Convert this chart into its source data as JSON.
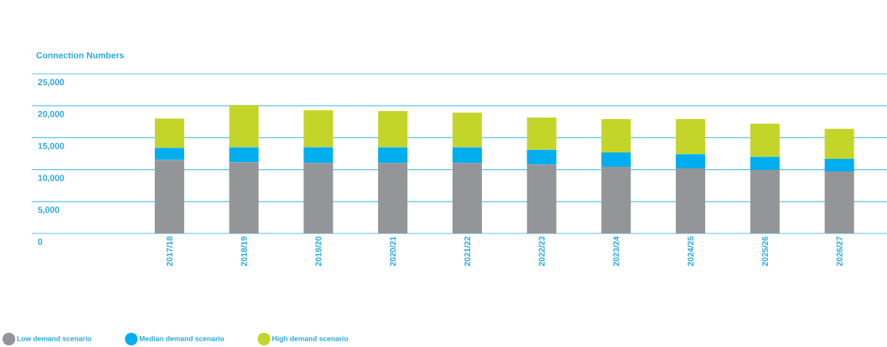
{
  "chart_data": {
    "type": "bar",
    "stacked": true,
    "title": "Connection Numbers",
    "categories": [
      "2017/18",
      "2018/19",
      "2019/20",
      "2020/21",
      "2021/22",
      "2022/23",
      "2023/24",
      "2024/25",
      "2025/26",
      "2026/27"
    ],
    "series": [
      {
        "name": "Low demand scenario",
        "color": "#939598",
        "values": [
          11500,
          11150,
          11050,
          11050,
          11050,
          10800,
          10450,
          10200,
          9950,
          9700
        ]
      },
      {
        "name": "Median demand scenario",
        "color": "#00aeef",
        "values": [
          1900,
          2350,
          2450,
          2450,
          2450,
          2300,
          2250,
          2200,
          2050,
          2000
        ]
      },
      {
        "name": "High demand scenario",
        "color": "#c4d52a",
        "values": [
          4600,
          6600,
          5800,
          5700,
          5450,
          5050,
          5200,
          5500,
          5200,
          4700
        ]
      }
    ],
    "ylim": [
      0,
      25000
    ],
    "yticks": [
      {
        "value": 0,
        "label": "0"
      },
      {
        "value": 5000,
        "label": "5,000"
      },
      {
        "value": 10000,
        "label": "10,000"
      },
      {
        "value": 15000,
        "label": "15,000"
      },
      {
        "value": 20000,
        "label": "20,000"
      },
      {
        "value": 25000,
        "label": "25,000"
      }
    ],
    "grid": "y",
    "legend": "bottom left"
  }
}
